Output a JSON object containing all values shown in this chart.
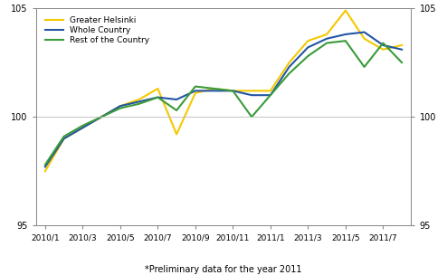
{
  "x_labels": [
    "2010/1",
    "2010/3",
    "2010/5",
    "2010/7",
    "2010/9",
    "2010/11",
    "2011/1",
    "2011/3",
    "2011/5",
    "2011/7"
  ],
  "x_tick_positions": [
    0,
    2,
    4,
    6,
    8,
    10,
    12,
    14,
    16,
    18
  ],
  "greater_helsinki": [
    97.5,
    99.0,
    99.5,
    100.0,
    100.5,
    100.8,
    101.3,
    99.2,
    101.1,
    101.3,
    101.2,
    101.2,
    101.2,
    102.5,
    103.5,
    103.8,
    104.9,
    103.6,
    103.1,
    103.3
  ],
  "whole_country": [
    97.7,
    99.0,
    99.5,
    100.0,
    100.5,
    100.7,
    100.9,
    100.8,
    101.2,
    101.2,
    101.2,
    101.0,
    101.0,
    102.3,
    103.2,
    103.6,
    103.8,
    103.9,
    103.3,
    103.1
  ],
  "rest_of_country": [
    97.8,
    99.1,
    99.6,
    100.0,
    100.4,
    100.6,
    100.9,
    100.3,
    101.4,
    101.3,
    101.2,
    100.0,
    101.0,
    102.0,
    102.8,
    103.4,
    103.5,
    102.3,
    103.4,
    102.5
  ],
  "color_helsinki": "#f5c800",
  "color_whole": "#2255a4",
  "color_rest": "#3a9b3a",
  "ylim": [
    95,
    105
  ],
  "yticks": [
    95,
    100,
    105
  ],
  "note": "*Preliminary data for the year 2011",
  "legend_labels": [
    "Greater Helsinki",
    "Whole Country",
    "Rest of the Country"
  ],
  "linewidth": 1.5
}
